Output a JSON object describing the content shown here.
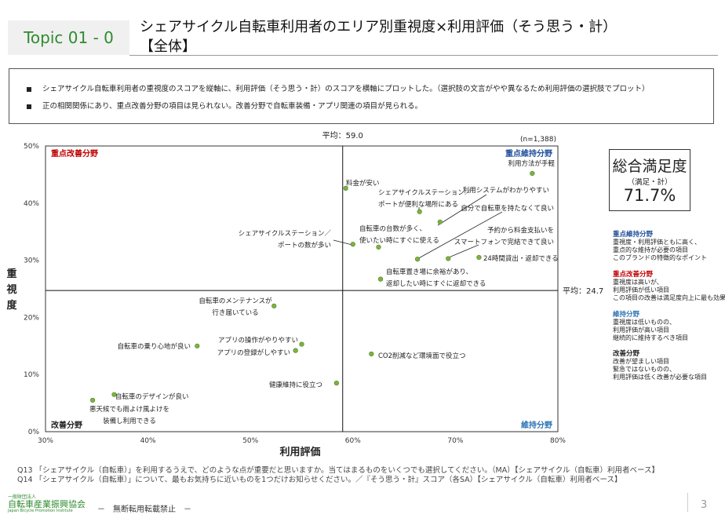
{
  "header": {
    "topic": "Topic 01 - 0",
    "title_line1": "シェアサイクル自転車利用者のエリア別重視度×利用評価（そう思う・計）",
    "title_line2": "【全体】"
  },
  "summary": {
    "bullets": [
      "シェアサイクル自転車利用者の重視度のスコアを縦軸に、利用評価（そう思う・計）のスコアを横軸にプロットした。（選択肢の文言がやや異なるため利用評価の選択肢でプロット）",
      "正の相関関係にあり、重点改善分野の項目は見られない。改善分野で自転車装備・アプリ関連の項目が見られる。"
    ]
  },
  "satisfaction": {
    "title": "総合満足度",
    "subtitle": "（満足・計）",
    "value": "71.7%"
  },
  "legend": [
    {
      "title": "重点維持分野",
      "color": "#1f4e9c",
      "lines": [
        "重視度・利用評価ともに高く、",
        "重点的な維持が必要の項目",
        "このブランドの特徴的なポイント"
      ]
    },
    {
      "title": "重点改善分野",
      "color": "#c00000",
      "lines": [
        "重視度は高いが、",
        "利用評価が低い項目",
        "この項目の改善は満足度向上に最も効果的"
      ]
    },
    {
      "title": "維持分野",
      "color": "#2e75b6",
      "lines": [
        "重視度は低いものの、",
        "利用評価が高い項目",
        "継続的に維持するべき項目"
      ]
    },
    {
      "title": "改善分野",
      "color": "#222222",
      "lines": [
        "改善が望ましい項目",
        "緊急ではないものの、",
        "利用評価は低く改善が必要な項目"
      ]
    }
  ],
  "notes": [
    "Q13 「シェアサイクル（自転車）」を利用するうえで、どのような点が重要だと思いますか。当てはまるものをいくつでも選択してください。（MA）【シェアサイクル（自転車）利用者ベース】",
    "Q14 「シェアサイクル（自転車）」について、最もお気持ちに近いものを1つだけお知らせください。／『そう思う・計』スコア（各SA）【シェアサイクル（自転車）利用者ベース】"
  ],
  "footer": {
    "org_small": "一般財団法人",
    "org_name": "自転車産業振興協会",
    "org_en": "Japan Bicycle Promotion Institute",
    "no_reprint": "－　無断転用転載禁止　－",
    "page": "3"
  },
  "chart_data": {
    "type": "scatter",
    "xlabel": "利用評価",
    "ylabel": "重視度",
    "xlim": [
      30,
      80
    ],
    "ylim": [
      0,
      50
    ],
    "xticks": [
      "30%",
      "40%",
      "50%",
      "60%",
      "70%",
      "80%"
    ],
    "yticks": [
      "0%",
      "10%",
      "20%",
      "30%",
      "40%",
      "50%"
    ],
    "n_label": "(n=1,388)",
    "mean_x": 59.0,
    "mean_y": 24.7,
    "mean_x_label": "平均：59.0",
    "mean_y_label": "平均：24.7",
    "point_color": "#7cb342",
    "quadrants": {
      "top_left": {
        "label": "重点改善分野",
        "color": "#c00000"
      },
      "top_right": {
        "label": "重点維持分野",
        "color": "#1f4e9c"
      },
      "bottom_left": {
        "label": "改善分野",
        "color": "#222222"
      },
      "bottom_right": {
        "label": "維持分野",
        "color": "#2e75b6"
      }
    },
    "points": [
      {
        "label": [
          "利用方法が手軽"
        ],
        "x": 77.5,
        "y": 45.2
      },
      {
        "label": [
          "料金が安い"
        ],
        "x": 59.3,
        "y": 42.6
      },
      {
        "label": [
          "利用システムがわかりやすい"
        ],
        "x": 68.5,
        "y": 36.7
      },
      {
        "label": [
          "シェアサイクルステーション／",
          "ポートが便利な場所にある"
        ],
        "x": 66.5,
        "y": 38.5
      },
      {
        "label": [
          "自分で自転車を持たなくて良い"
        ],
        "x": 66.3,
        "y": 30.2
      },
      {
        "label": [
          "シェアサイクルステーション／",
          "ポートの数が多い"
        ],
        "x": 60.0,
        "y": 32.8
      },
      {
        "label": [
          "自転車の台数が多く、",
          "使いたい時にすぐに使える"
        ],
        "x": 62.5,
        "y": 32.3
      },
      {
        "label": [
          "予約から料金支払いを",
          "スマートフォンで完結できて良い"
        ],
        "x": 69.3,
        "y": 30.3
      },
      {
        "label": [
          "24時間貸出・返却できる"
        ],
        "x": 72.3,
        "y": 30.5
      },
      {
        "label": [
          "自転車置き場に余裕があり、",
          "返却したい時にすぐに返却できる"
        ],
        "x": 62.7,
        "y": 26.7
      },
      {
        "label": [
          "自転車のメンテナンスが",
          "行き届いている"
        ],
        "x": 52.3,
        "y": 22.0
      },
      {
        "label": [
          "自転車の乗り心地が良い"
        ],
        "x": 44.8,
        "y": 15.0
      },
      {
        "label": [
          "アプリの操作がやりやすい"
        ],
        "x": 55.0,
        "y": 15.3
      },
      {
        "label": [
          "アプリの登録がしやすい"
        ],
        "x": 54.4,
        "y": 14.2
      },
      {
        "label": [
          "CO2削減など環境面で役立つ"
        ],
        "x": 61.8,
        "y": 13.6
      },
      {
        "label": [
          "健康維持に役立つ"
        ],
        "x": 58.4,
        "y": 8.5
      },
      {
        "label": [
          "自転車のデザインが良い"
        ],
        "x": 36.7,
        "y": 6.5
      },
      {
        "label": [
          "悪天候でも雨よけ風よけを",
          "装備し利用できる"
        ],
        "x": 34.6,
        "y": 5.5
      }
    ]
  }
}
